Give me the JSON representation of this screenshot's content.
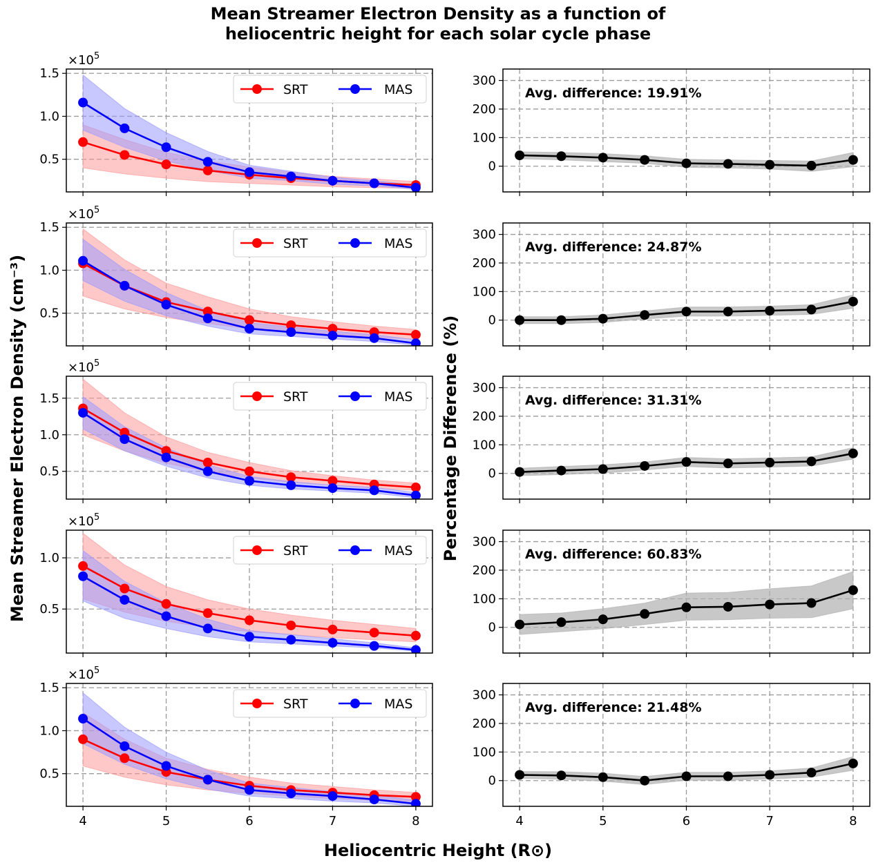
{
  "title_lines": [
    "Mean Streamer Electron Density as a function of",
    "heliocentric height for each solar cycle phase"
  ],
  "xlabel": "Heliocentric Height (R⊙)",
  "ylabel_left": "Mean Streamer Electron Density (cm⁻³)",
  "ylabel_right": "Percentage Difference (%)",
  "colors": {
    "srt": "#ff0000",
    "mas": "#0000ff",
    "srt_band": "#ff9a9a",
    "mas_band": "#9a9aff",
    "diff": "#000000",
    "diff_band": "#b0b0b0"
  },
  "chart_data": {
    "type": "line",
    "x": [
      4,
      4.5,
      5,
      5.5,
      6,
      6.5,
      7,
      7.5,
      8
    ],
    "xlim": [
      3.8,
      8.2
    ],
    "xticks": [
      4,
      5,
      6,
      7,
      8
    ],
    "scale_label": "×10",
    "scale_exp": "5",
    "legend": [
      "SRT",
      "MAS"
    ],
    "legend_position": "top-right",
    "density_panels": [
      {
        "ylim": [
          0.12,
          1.55
        ],
        "yticks": [
          0.5,
          1.0,
          1.5
        ],
        "ytick_labels": [
          "0.5",
          "1.0",
          "1.5"
        ],
        "series": [
          {
            "name": "SRT",
            "values": [
              0.7,
              0.55,
              0.44,
              0.37,
              0.32,
              0.28,
              0.25,
              0.22,
              0.2
            ],
            "lower": [
              0.4,
              0.33,
              0.28,
              0.24,
              0.22,
              0.2,
              0.18,
              0.17,
              0.16
            ],
            "upper": [
              0.9,
              0.73,
              0.58,
              0.48,
              0.41,
              0.35,
              0.3,
              0.27,
              0.24
            ]
          },
          {
            "name": "MAS",
            "values": [
              1.16,
              0.86,
              0.64,
              0.47,
              0.35,
              0.3,
              0.25,
              0.22,
              0.17
            ],
            "lower": [
              0.84,
              0.64,
              0.48,
              0.37,
              0.28,
              0.25,
              0.21,
              0.19,
              0.15
            ],
            "upper": [
              1.48,
              1.09,
              0.81,
              0.59,
              0.43,
              0.36,
              0.29,
              0.25,
              0.2
            ]
          }
        ]
      },
      {
        "ylim": [
          0.12,
          1.55
        ],
        "yticks": [
          0.5,
          1.0,
          1.5
        ],
        "ytick_labels": [
          "0.5",
          "1.0",
          "1.5"
        ],
        "series": [
          {
            "name": "SRT",
            "values": [
              1.08,
              0.82,
              0.63,
              0.52,
              0.42,
              0.36,
              0.32,
              0.28,
              0.25
            ],
            "lower": [
              0.7,
              0.55,
              0.45,
              0.38,
              0.32,
              0.28,
              0.25,
              0.22,
              0.2
            ],
            "upper": [
              1.48,
              1.12,
              0.85,
              0.69,
              0.55,
              0.46,
              0.4,
              0.35,
              0.31
            ]
          },
          {
            "name": "MAS",
            "values": [
              1.11,
              0.82,
              0.6,
              0.44,
              0.32,
              0.28,
              0.24,
              0.21,
              0.15
            ],
            "lower": [
              0.88,
              0.64,
              0.47,
              0.35,
              0.26,
              0.23,
              0.2,
              0.17,
              0.13
            ],
            "upper": [
              1.36,
              1.01,
              0.74,
              0.53,
              0.39,
              0.34,
              0.29,
              0.25,
              0.19
            ]
          }
        ]
      },
      {
        "ylim": [
          0.12,
          1.8
        ],
        "yticks": [
          0.5,
          1.0,
          1.5
        ],
        "ytick_labels": [
          "0.5",
          "1.0",
          "1.5"
        ],
        "series": [
          {
            "name": "SRT",
            "values": [
              1.36,
              1.03,
              0.78,
              0.62,
              0.5,
              0.42,
              0.37,
              0.32,
              0.28
            ],
            "lower": [
              1.0,
              0.78,
              0.61,
              0.5,
              0.41,
              0.35,
              0.31,
              0.27,
              0.24
            ],
            "upper": [
              1.76,
              1.3,
              0.97,
              0.76,
              0.62,
              0.51,
              0.44,
              0.38,
              0.34
            ]
          },
          {
            "name": "MAS",
            "values": [
              1.3,
              0.94,
              0.69,
              0.5,
              0.37,
              0.31,
              0.27,
              0.24,
              0.17
            ],
            "lower": [
              1.08,
              0.78,
              0.57,
              0.41,
              0.31,
              0.26,
              0.23,
              0.2,
              0.14
            ],
            "upper": [
              1.52,
              1.11,
              0.82,
              0.59,
              0.43,
              0.36,
              0.31,
              0.28,
              0.21
            ]
          }
        ]
      },
      {
        "ylim": [
          0.07,
          1.27
        ],
        "yticks": [
          0.5,
          1.0
        ],
        "ytick_labels": [
          "0.5",
          "1.0"
        ],
        "series": [
          {
            "name": "SRT",
            "values": [
              0.92,
              0.7,
              0.55,
              0.46,
              0.39,
              0.34,
              0.3,
              0.27,
              0.24
            ],
            "lower": [
              0.6,
              0.47,
              0.38,
              0.32,
              0.28,
              0.25,
              0.22,
              0.2,
              0.18
            ],
            "upper": [
              1.24,
              0.93,
              0.72,
              0.59,
              0.5,
              0.44,
              0.39,
              0.35,
              0.31
            ]
          },
          {
            "name": "MAS",
            "values": [
              0.82,
              0.59,
              0.43,
              0.31,
              0.23,
              0.2,
              0.17,
              0.14,
              0.1
            ],
            "lower": [
              0.58,
              0.41,
              0.31,
              0.23,
              0.18,
              0.16,
              0.14,
              0.12,
              0.09
            ],
            "upper": [
              1.07,
              0.77,
              0.56,
              0.4,
              0.29,
              0.25,
              0.21,
              0.17,
              0.12
            ]
          }
        ]
      },
      {
        "ylim": [
          0.12,
          1.55
        ],
        "yticks": [
          0.5,
          1.0,
          1.5
        ],
        "ytick_labels": [
          "0.5",
          "1.0",
          "1.5"
        ],
        "series": [
          {
            "name": "SRT",
            "values": [
              0.9,
              0.68,
              0.52,
              0.43,
              0.36,
              0.31,
              0.28,
              0.25,
              0.23
            ],
            "lower": [
              0.59,
              0.46,
              0.37,
              0.31,
              0.27,
              0.24,
              0.21,
              0.19,
              0.18
            ],
            "upper": [
              1.21,
              0.9,
              0.68,
              0.55,
              0.46,
              0.39,
              0.35,
              0.31,
              0.28
            ]
          },
          {
            "name": "MAS",
            "values": [
              1.14,
              0.82,
              0.59,
              0.43,
              0.31,
              0.27,
              0.24,
              0.2,
              0.15
            ],
            "lower": [
              0.85,
              0.61,
              0.44,
              0.32,
              0.24,
              0.21,
              0.18,
              0.16,
              0.12
            ],
            "upper": [
              1.44,
              1.04,
              0.75,
              0.54,
              0.39,
              0.34,
              0.29,
              0.25,
              0.19
            ]
          }
        ]
      }
    ],
    "difference_panels": [
      {
        "annotation": "Avg. difference: 19.91%",
        "ylim": [
          -90,
          340
        ],
        "yticks": [
          0,
          100,
          200,
          300
        ],
        "values": [
          38,
          35,
          30,
          22,
          10,
          8,
          5,
          2,
          22
        ],
        "lower": [
          26,
          22,
          16,
          10,
          -4,
          -6,
          -10,
          -18,
          -2
        ],
        "upper": [
          50,
          48,
          44,
          36,
          24,
          22,
          20,
          18,
          48
        ]
      },
      {
        "annotation": "Avg. difference: 24.87%",
        "ylim": [
          -90,
          340
        ],
        "yticks": [
          0,
          100,
          200,
          300
        ],
        "values": [
          0,
          0,
          5,
          18,
          30,
          30,
          33,
          37,
          65
        ],
        "lower": [
          -12,
          -12,
          -8,
          4,
          14,
          14,
          17,
          20,
          42
        ],
        "upper": [
          12,
          12,
          18,
          32,
          46,
          46,
          49,
          54,
          88
        ]
      },
      {
        "annotation": "Avg. difference: 31.31%",
        "ylim": [
          -90,
          340
        ],
        "yticks": [
          0,
          100,
          200,
          300
        ],
        "values": [
          5,
          10,
          15,
          26,
          40,
          35,
          38,
          42,
          70
        ],
        "lower": [
          -8,
          -4,
          1,
          12,
          24,
          19,
          22,
          26,
          50
        ],
        "upper": [
          18,
          24,
          30,
          40,
          56,
          51,
          54,
          58,
          90
        ]
      },
      {
        "annotation": "Avg. difference: 60.83%",
        "ylim": [
          -90,
          340
        ],
        "yticks": [
          0,
          100,
          200,
          300
        ],
        "values": [
          10,
          18,
          28,
          47,
          70,
          72,
          80,
          85,
          130
        ],
        "lower": [
          -25,
          -15,
          -5,
          10,
          25,
          27,
          32,
          34,
          65
        ],
        "upper": [
          45,
          50,
          65,
          85,
          120,
          122,
          135,
          145,
          195
        ]
      },
      {
        "annotation": "Avg. difference: 21.48%",
        "ylim": [
          -90,
          340
        ],
        "yticks": [
          0,
          100,
          200,
          300
        ],
        "values": [
          20,
          18,
          12,
          0,
          15,
          15,
          20,
          28,
          60
        ],
        "lower": [
          8,
          5,
          -2,
          -14,
          1,
          1,
          6,
          12,
          36
        ],
        "upper": [
          32,
          31,
          26,
          14,
          29,
          29,
          34,
          44,
          84
        ]
      }
    ]
  }
}
